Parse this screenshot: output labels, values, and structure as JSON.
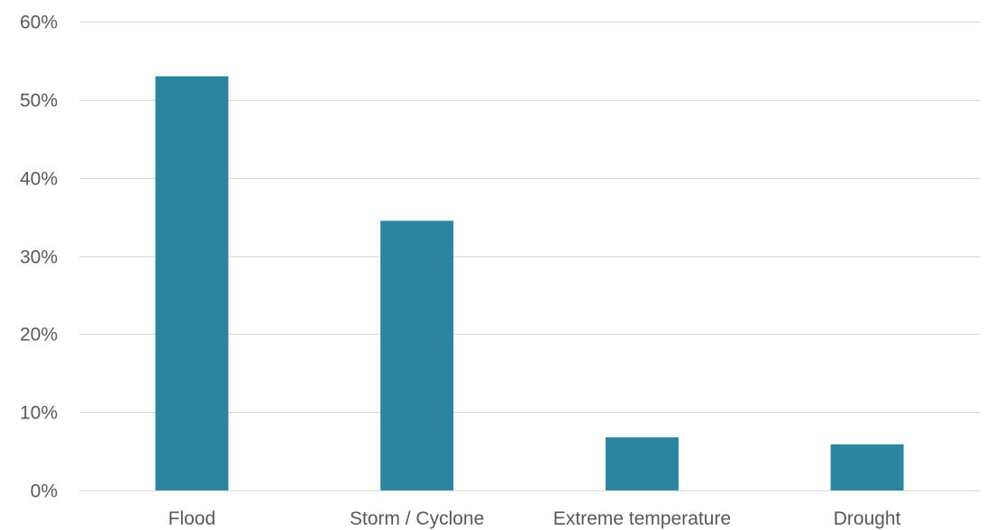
{
  "chart_data": {
    "type": "bar",
    "title": "",
    "xlabel": "",
    "ylabel": "",
    "categories": [
      "Flood",
      "Storm / Cyclone",
      "Extreme temperature",
      "Drought"
    ],
    "values": [
      0.53,
      0.345,
      0.068,
      0.059
    ],
    "ylim": [
      0,
      0.6
    ],
    "yticks": [
      0,
      0.1,
      0.2,
      0.3,
      0.4,
      0.5,
      0.6
    ],
    "ytick_labels": [
      "0%",
      "10%",
      "20%",
      "30%",
      "40%",
      "50%",
      "60%"
    ],
    "grid": true,
    "legend": "none",
    "bar_color": "#2b85a1",
    "grid_color": "#d9d9d9",
    "text_color": "#595959"
  }
}
